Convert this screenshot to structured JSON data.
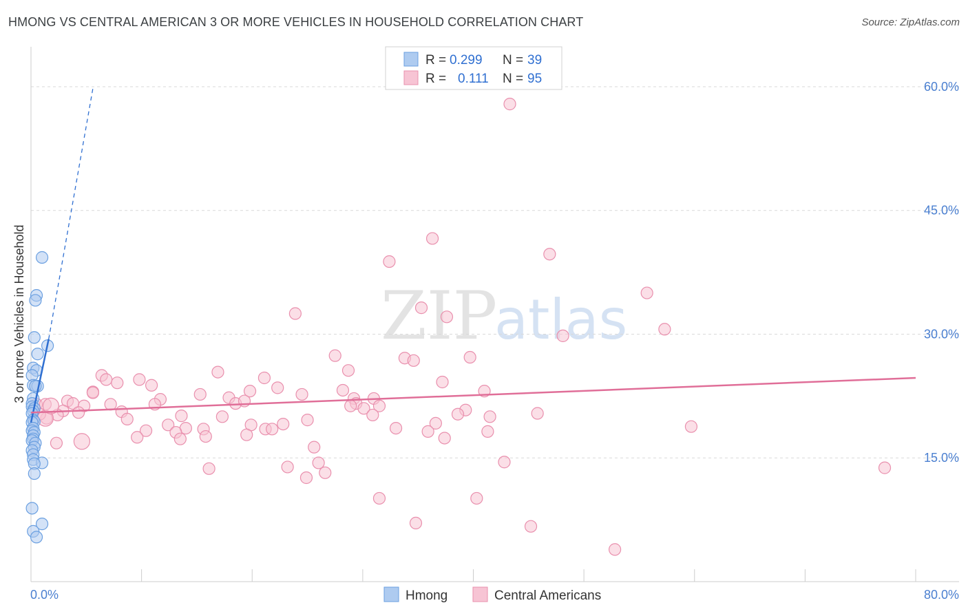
{
  "title": "HMONG VS CENTRAL AMERICAN 3 OR MORE VEHICLES IN HOUSEHOLD CORRELATION CHART",
  "source": "Source: ZipAtlas.com",
  "colors": {
    "blue_fill": "#aecbf0",
    "blue_stroke": "#6a9fe0",
    "blue_line": "#2f6fd1",
    "pink_fill": "#f7c4d4",
    "pink_stroke": "#e98fad",
    "pink_line": "#e06e98",
    "grid": "#d9d9d9",
    "axis": "#cccccc"
  },
  "watermark": {
    "zip": "ZIP",
    "atlas": "atlas"
  },
  "legend": {
    "rows": [
      {
        "r_label": "R =",
        "r_value": "0.299",
        "n_label": "N =",
        "n_value": "39",
        "series": "Hmong"
      },
      {
        "r_label": "R =",
        "r_value": "0.111",
        "n_label": "N =",
        "n_value": "95",
        "series": "Central Americans"
      }
    ]
  },
  "bottom_legend": [
    "Hmong",
    "Central Americans"
  ],
  "chart_data": {
    "type": "scatter",
    "title": "HMONG VS CENTRAL AMERICAN 3 OR MORE VEHICLES IN HOUSEHOLD CORRELATION CHART",
    "xlabel": "",
    "ylabel": "3 or more Vehicles in Household",
    "xlim": [
      0,
      80
    ],
    "ylim": [
      0,
      64
    ],
    "x_tick_labels": [
      "0.0%",
      "80.0%"
    ],
    "y_ticks": [
      15,
      30,
      45,
      60
    ],
    "y_tick_labels": [
      "15.0%",
      "30.0%",
      "45.0%",
      "60.0%"
    ],
    "series": [
      {
        "name": "Hmong",
        "r": 0.299,
        "n": 39,
        "trend": {
          "x0": 0.0,
          "y0": 19.3,
          "x1": 1.6,
          "y1": 29.4,
          "dash_to_x": 5.6,
          "dash_to_y": 59.8
        },
        "points": [
          [
            1.0,
            39.3
          ],
          [
            0.5,
            34.7
          ],
          [
            0.4,
            34.1
          ],
          [
            0.3,
            29.6
          ],
          [
            1.5,
            28.6
          ],
          [
            0.6,
            27.6
          ],
          [
            0.2,
            25.9
          ],
          [
            0.5,
            25.6
          ],
          [
            0.1,
            25.0
          ],
          [
            0.2,
            23.8
          ],
          [
            0.6,
            23.7
          ],
          [
            0.4,
            23.7
          ],
          [
            0.2,
            22.2
          ],
          [
            0.1,
            21.6
          ],
          [
            0.1,
            21.2
          ],
          [
            0.3,
            21.0
          ],
          [
            0.2,
            20.7
          ],
          [
            0.1,
            20.4
          ],
          [
            0.2,
            19.6
          ],
          [
            0.3,
            19.4
          ],
          [
            0.1,
            19.3
          ],
          [
            0.2,
            18.6
          ],
          [
            0.1,
            18.3
          ],
          [
            0.3,
            18.1
          ],
          [
            0.2,
            17.7
          ],
          [
            0.2,
            17.3
          ],
          [
            0.1,
            17.1
          ],
          [
            0.4,
            16.8
          ],
          [
            0.3,
            16.3
          ],
          [
            0.1,
            15.9
          ],
          [
            0.2,
            15.4
          ],
          [
            0.2,
            14.8
          ],
          [
            1.0,
            14.4
          ],
          [
            0.3,
            14.3
          ],
          [
            0.3,
            13.1
          ],
          [
            0.1,
            8.9
          ],
          [
            1.0,
            7.0
          ],
          [
            0.2,
            6.1
          ],
          [
            0.5,
            5.4
          ]
        ]
      },
      {
        "name": "Central Americans",
        "r": 0.111,
        "n": 95,
        "trend": {
          "x0": 0.0,
          "y0": 20.5,
          "x1": 80.0,
          "y1": 24.7
        },
        "points": [
          [
            43.3,
            57.9
          ],
          [
            36.3,
            41.6
          ],
          [
            46.9,
            39.7
          ],
          [
            32.4,
            38.8
          ],
          [
            55.7,
            35.0
          ],
          [
            57.3,
            30.6
          ],
          [
            23.9,
            32.5
          ],
          [
            35.3,
            33.2
          ],
          [
            37.6,
            32.1
          ],
          [
            48.1,
            29.8
          ],
          [
            27.5,
            27.4
          ],
          [
            33.8,
            27.1
          ],
          [
            34.6,
            26.8
          ],
          [
            39.7,
            27.2
          ],
          [
            28.7,
            25.6
          ],
          [
            16.9,
            25.4
          ],
          [
            6.4,
            25.0
          ],
          [
            21.1,
            24.7
          ],
          [
            6.8,
            24.5
          ],
          [
            9.8,
            24.5
          ],
          [
            7.8,
            24.1
          ],
          [
            10.9,
            23.8
          ],
          [
            22.3,
            23.5
          ],
          [
            37.2,
            24.2
          ],
          [
            5.6,
            23.0
          ],
          [
            28.2,
            23.2
          ],
          [
            19.8,
            23.1
          ],
          [
            24.5,
            22.7
          ],
          [
            41.0,
            23.1
          ],
          [
            5.6,
            22.9
          ],
          [
            11.7,
            22.1
          ],
          [
            15.3,
            22.7
          ],
          [
            17.9,
            22.3
          ],
          [
            29.2,
            22.2
          ],
          [
            31.0,
            22.2
          ],
          [
            18.5,
            21.6
          ],
          [
            19.3,
            21.9
          ],
          [
            3.3,
            21.9
          ],
          [
            0.5,
            21.5
          ],
          [
            1.3,
            21.5
          ],
          [
            3.8,
            21.6
          ],
          [
            4.8,
            21.3
          ],
          [
            7.2,
            21.5
          ],
          [
            11.2,
            21.5
          ],
          [
            29.4,
            21.6
          ],
          [
            31.5,
            21.3
          ],
          [
            2.9,
            20.7
          ],
          [
            28.9,
            21.3
          ],
          [
            30.1,
            21.0
          ],
          [
            39.3,
            20.8
          ],
          [
            8.2,
            20.6
          ],
          [
            13.6,
            20.1
          ],
          [
            17.3,
            20.0
          ],
          [
            30.9,
            20.2
          ],
          [
            38.6,
            20.3
          ],
          [
            41.5,
            20.0
          ],
          [
            45.8,
            20.4
          ],
          [
            1.4,
            19.8
          ],
          [
            0.8,
            20.3
          ],
          [
            2.4,
            20.2
          ],
          [
            4.3,
            20.5
          ],
          [
            8.7,
            19.7
          ],
          [
            12.4,
            19.0
          ],
          [
            14.0,
            18.6
          ],
          [
            19.9,
            19.0
          ],
          [
            22.8,
            19.1
          ],
          [
            25.0,
            19.6
          ],
          [
            33.0,
            18.6
          ],
          [
            36.6,
            19.2
          ],
          [
            15.6,
            18.5
          ],
          [
            10.4,
            18.3
          ],
          [
            13.1,
            18.1
          ],
          [
            21.2,
            18.5
          ],
          [
            21.8,
            18.5
          ],
          [
            35.9,
            18.2
          ],
          [
            41.3,
            18.2
          ],
          [
            59.7,
            18.8
          ],
          [
            9.6,
            17.5
          ],
          [
            13.5,
            17.3
          ],
          [
            15.8,
            17.6
          ],
          [
            19.5,
            17.8
          ],
          [
            37.4,
            17.4
          ],
          [
            2.3,
            16.8
          ],
          [
            25.6,
            16.3
          ],
          [
            26.0,
            14.4
          ],
          [
            42.8,
            14.5
          ],
          [
            16.1,
            13.7
          ],
          [
            23.2,
            13.9
          ],
          [
            26.6,
            13.2
          ],
          [
            24.9,
            12.6
          ],
          [
            77.2,
            13.8
          ],
          [
            31.5,
            10.1
          ],
          [
            40.3,
            10.1
          ],
          [
            34.8,
            7.1
          ],
          [
            45.2,
            6.7
          ],
          [
            52.8,
            3.9
          ]
        ]
      }
    ]
  }
}
